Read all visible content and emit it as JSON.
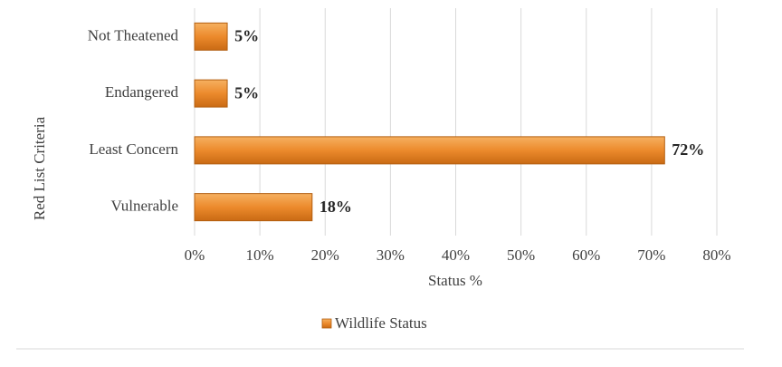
{
  "chart_data": {
    "type": "hbar",
    "categories": [
      "Not Theatened",
      "Endangered",
      "Least Concern",
      "Vulnerable"
    ],
    "series": [
      {
        "name": "Wildlife Status",
        "color": "#ec8a2c",
        "values": [
          5,
          5,
          72,
          18
        ],
        "value_labels": [
          "5%",
          "5%",
          "72%",
          "18%"
        ]
      }
    ],
    "xlabel": "Status %",
    "ylabel": "Red List Criteria",
    "xlim": [
      0,
      80
    ],
    "xticks": [
      {
        "value": 0,
        "label": "0%"
      },
      {
        "value": 10,
        "label": "10%"
      },
      {
        "value": 20,
        "label": "20%"
      },
      {
        "value": 30,
        "label": "30%"
      },
      {
        "value": 40,
        "label": "40%"
      },
      {
        "value": 50,
        "label": "50%"
      },
      {
        "value": 60,
        "label": "60%"
      },
      {
        "value": 70,
        "label": "70%"
      },
      {
        "value": 80,
        "label": "80%"
      }
    ],
    "grid": true,
    "legend": "bottom"
  }
}
